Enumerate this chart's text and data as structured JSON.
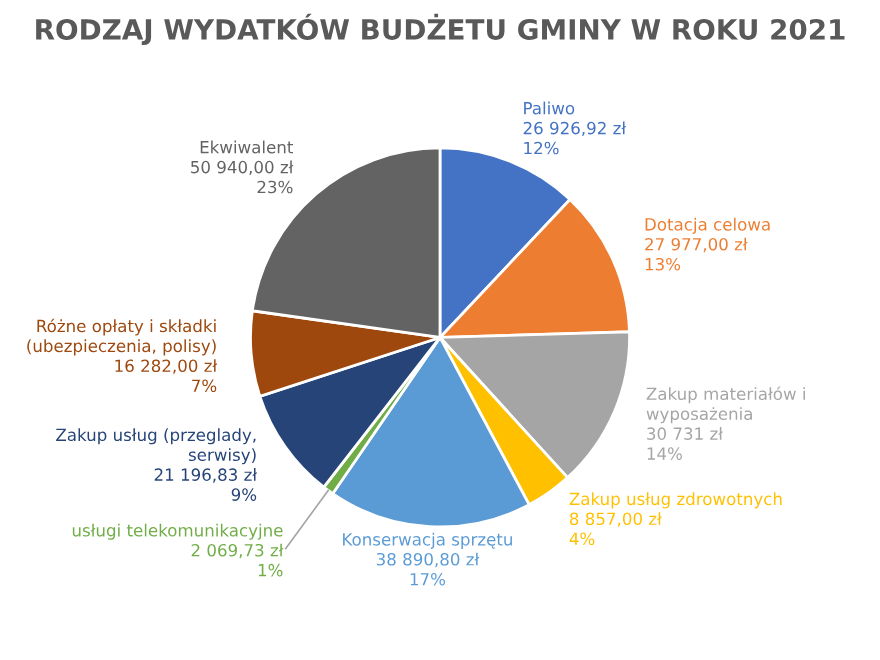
{
  "chart_data": {
    "type": "pie",
    "title": "RODZAJ WYDATKÓW BUDŻETU GMINY W ROKU 2021",
    "categories": [
      "Paliwo",
      "Dotacja celowa",
      "Zakup materiałów i\nwyposażenia",
      "Zakup usług zdrowotnych",
      "Konserwacja sprzętu",
      "usługi telekomunikacyjne",
      "Zakup usług (przeglady,\nserwisy)",
      "Różne opłaty i składki\n(ubezpieczenia, polisy)",
      "Ekwiwalent"
    ],
    "values": [
      26926.92,
      27977,
      30731,
      8857,
      38890.8,
      2069.73,
      21196.83,
      16282,
      50940
    ],
    "colors": [
      "#4472c4",
      "#ed7d31",
      "#a5a5a5",
      "#ffc000",
      "#5b9bd5",
      "#70ad47",
      "#264478",
      "#9e480e",
      "#636363"
    ],
    "value_labels": [
      "26 926,92 zł\n12%",
      "27 977,00 zł\n13%",
      "30 731 zł\n14%",
      "8 857,00 zł\n4%",
      "38 890,80 zł\n17%",
      "2 069,73 zł\n1%",
      "21 196,83 zł\n9%",
      "16 282,00 zł\n7%",
      "50 940,00 zł\n23%"
    ],
    "legend": false
  }
}
